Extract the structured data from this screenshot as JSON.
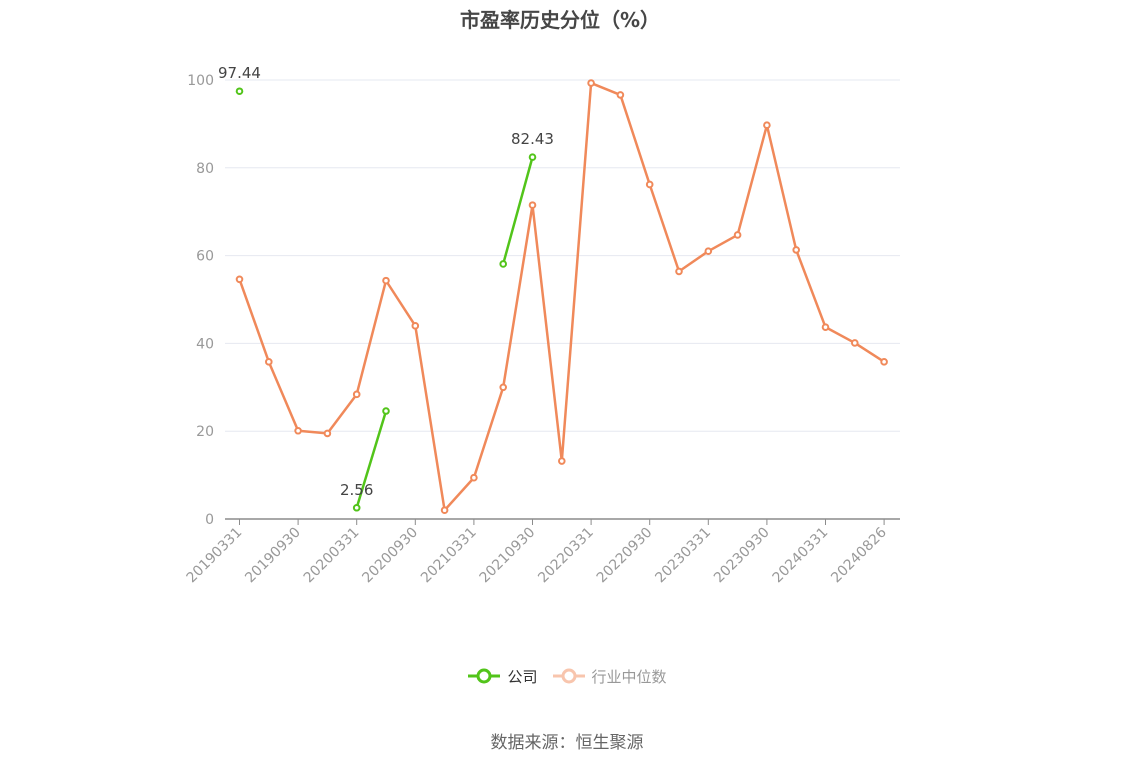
{
  "chart_data": {
    "type": "line",
    "title": "市盈率历史分位（%）",
    "ylim": [
      0,
      100
    ],
    "y_ticks": [
      0,
      20,
      40,
      60,
      80,
      100
    ],
    "x": [
      "20190331",
      "20190630",
      "20190930",
      "20191231",
      "20200331",
      "20200630",
      "20200930",
      "20201231",
      "20210331",
      "20210630",
      "20210930",
      "20211231",
      "20220331",
      "20220630",
      "20220930",
      "20221231",
      "20230331",
      "20230630",
      "20230930",
      "20231231",
      "20240331",
      "20240630",
      "20240826"
    ],
    "x_tick_labels": [
      "20190331",
      "20190930",
      "20200331",
      "20200930",
      "20210331",
      "20210930",
      "20220331",
      "20220930",
      "20230331",
      "20230930",
      "20240331",
      "20240826"
    ],
    "grid": true,
    "legend_position": "bottom",
    "series": [
      {
        "name": "公司",
        "color": "#52c41a",
        "values": [
          97.44,
          null,
          null,
          null,
          2.56,
          24.6,
          null,
          null,
          null,
          58.1,
          82.43,
          null,
          null,
          null,
          null,
          null,
          null,
          null,
          null,
          null,
          null,
          null,
          null
        ],
        "point_labels": {
          "0": "97.44",
          "4": "2.56",
          "10": "82.43"
        }
      },
      {
        "name": "行业中位数",
        "color": "#f0895a",
        "values": [
          54.6,
          35.8,
          20.1,
          19.5,
          28.4,
          54.3,
          44.0,
          2.0,
          9.4,
          30.0,
          71.5,
          13.2,
          99.3,
          96.6,
          76.2,
          56.4,
          61.0,
          64.7,
          89.7,
          61.3,
          43.7,
          40.1,
          35.8
        ]
      }
    ]
  },
  "legend": {
    "company": "公司",
    "industry": "行业中位数"
  },
  "source": "数据来源：恒生聚源"
}
